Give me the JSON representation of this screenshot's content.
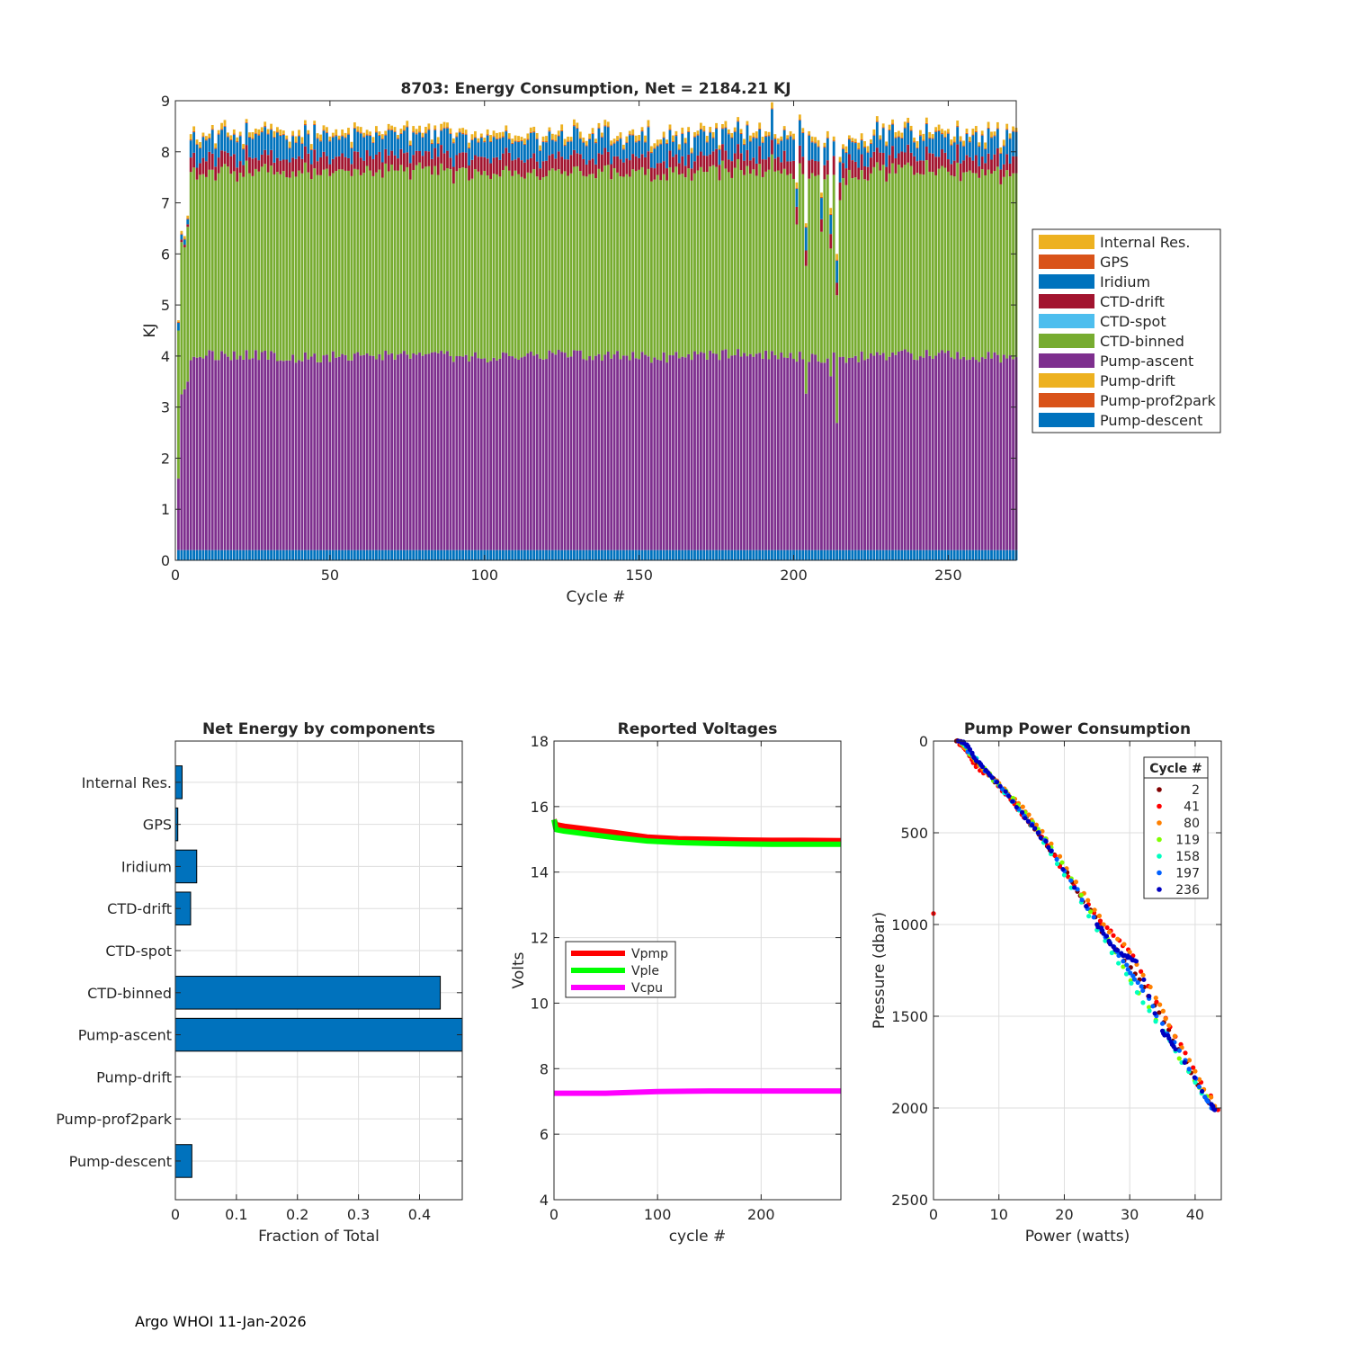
{
  "footer": "Argo WHOI 11-Jan-2026",
  "colors": {
    "Internal Res.": "#EDB120",
    "GPS": "#D95319",
    "Iridium": "#0072BD",
    "CTD-drift": "#A2142F",
    "CTD-spot": "#4DBEEE",
    "CTD-binned": "#77AC30",
    "Pump-ascent": "#7E2F8E",
    "Pump-drift": "#EDB120",
    "Pump-prof2park": "#D95319",
    "Pump-descent": "#0072BD"
  },
  "chart_data": [
    {
      "id": "energy",
      "type": "bar",
      "stacked": true,
      "title": "8703: Energy Consumption,  Net = 2184.21 KJ",
      "xlabel": "Cycle #",
      "ylabel": "KJ",
      "xlim": [
        0,
        272
      ],
      "ylim": [
        0,
        9
      ],
      "xticks": [
        0,
        50,
        100,
        150,
        200,
        250
      ],
      "yticks": [
        0,
        1,
        2,
        3,
        4,
        5,
        6,
        7,
        8,
        9
      ],
      "grid": false,
      "legend_position": "right",
      "legend": [
        "Internal Res.",
        "GPS",
        "Iridium",
        "CTD-drift",
        "CTD-spot",
        "CTD-binned",
        "Pump-ascent",
        "Pump-drift",
        "Pump-prof2park",
        "Pump-descent"
      ],
      "n_cycles": 272,
      "typical_stack": {
        "Pump-descent": 0.2,
        "Pump-prof2park": 0.0,
        "Pump-drift": 0.0,
        "Pump-ascent": 3.85,
        "CTD-binned": 3.6,
        "CTD-spot": 0.0,
        "CTD-drift": 0.3,
        "Iridium": 0.35,
        "GPS": 0.02,
        "Internal Res.": 0.1
      },
      "approx_totals": {
        "cycle_1": 4.7,
        "cycle_2": 6.45,
        "cycle_3": 6.35,
        "cycle_4": 6.75,
        "typical_range": [
          8.1,
          8.6
        ],
        "cycle_193": 8.9,
        "dips": {
          "201": 7.4,
          "204": 6.6,
          "209": 7.2,
          "212": 6.9,
          "214": 6.0,
          "215": 7.9
        }
      }
    },
    {
      "id": "components",
      "type": "bar",
      "orientation": "horizontal",
      "title": "Net Energy by components",
      "xlabel": "Fraction of Total",
      "ylabel": "",
      "xlim": [
        0,
        0.47
      ],
      "xticks": [
        0,
        0.1,
        0.2,
        0.3,
        0.4
      ],
      "xtick_labels": [
        "0",
        "0.1",
        "0.2",
        "0.3",
        "0.4"
      ],
      "grid": true,
      "categories": [
        "Internal Res.",
        "GPS",
        "Iridium",
        "CTD-drift",
        "CTD-spot",
        "CTD-binned",
        "Pump-ascent",
        "Pump-drift",
        "Pump-prof2park",
        "Pump-descent"
      ],
      "values": [
        0.011,
        0.004,
        0.035,
        0.025,
        0.0,
        0.434,
        0.47,
        0.0,
        0.0,
        0.027
      ]
    },
    {
      "id": "voltages",
      "type": "line",
      "title": "Reported Voltages",
      "xlabel": "cycle #",
      "ylabel": "Volts",
      "xlim": [
        0,
        277
      ],
      "ylim": [
        4,
        18
      ],
      "xticks": [
        0,
        100,
        200
      ],
      "yticks": [
        4,
        6,
        8,
        10,
        12,
        14,
        16,
        18
      ],
      "grid": true,
      "legend_position": "center-left",
      "series": [
        {
          "name": "Vpmp",
          "color": "#FF0000",
          "x": [
            0,
            2,
            10,
            30,
            60,
            90,
            120,
            150,
            180,
            210,
            240,
            277
          ],
          "y": [
            15.6,
            15.45,
            15.4,
            15.32,
            15.2,
            15.07,
            15.02,
            15.0,
            14.98,
            14.97,
            14.97,
            14.96
          ]
        },
        {
          "name": "Vple",
          "color": "#00FF00",
          "x": [
            0,
            2,
            10,
            30,
            60,
            90,
            120,
            150,
            180,
            210,
            240,
            277
          ],
          "y": [
            15.6,
            15.3,
            15.25,
            15.17,
            15.05,
            14.95,
            14.9,
            14.88,
            14.86,
            14.85,
            14.85,
            14.85
          ]
        },
        {
          "name": "Vcpu",
          "color": "#FF00FF",
          "x": [
            0,
            50,
            100,
            150,
            200,
            277
          ],
          "y": [
            7.25,
            7.25,
            7.3,
            7.32,
            7.32,
            7.32
          ]
        }
      ]
    },
    {
      "id": "pump",
      "type": "scatter",
      "title": "Pump Power Consumption",
      "xlabel": "Power (watts)",
      "ylabel": "Pressure (dbar)",
      "xlim": [
        0,
        44
      ],
      "ylim": [
        0,
        2500
      ],
      "y_reversed": true,
      "xticks": [
        0,
        10,
        20,
        30,
        40
      ],
      "yticks": [
        0,
        500,
        1000,
        1500,
        2000,
        2500
      ],
      "grid": true,
      "legend_title": "Cycle #",
      "legend_position": "top-right",
      "series": [
        {
          "name": "2",
          "color": "#800000",
          "x": [
            3.5,
            4.5,
            5.5,
            7,
            8.5,
            10.5,
            12.5,
            14.5,
            16.5,
            18.5,
            22,
            24,
            26.5,
            28.5,
            31.5,
            34.5,
            37.5,
            41.5,
            43
          ],
          "y": [
            0,
            10,
            80,
            130,
            180,
            260,
            340,
            440,
            530,
            620,
            820,
            920,
            1080,
            1160,
            1300,
            1480,
            1680,
            1940,
            2010
          ]
        },
        {
          "name": "41",
          "color": "#FF0000",
          "x": [
            0,
            4,
            5.2,
            6.5,
            9,
            11,
            13.5,
            15.5,
            17.5,
            21.5,
            25.5,
            27.5,
            30.5,
            35.5,
            38.5,
            43.5
          ],
          "y": [
            940,
            20,
            60,
            140,
            200,
            290,
            400,
            470,
            570,
            790,
            980,
            1060,
            1170,
            1510,
            1700,
            2010
          ]
        },
        {
          "name": "80",
          "color": "#FF8000",
          "x": [
            4.2,
            6,
            8,
            10,
            13,
            15,
            18,
            23,
            26,
            30,
            34,
            36,
            40,
            43
          ],
          "y": [
            15,
            90,
            170,
            230,
            340,
            430,
            560,
            830,
            1000,
            1150,
            1400,
            1550,
            1800,
            1990
          ]
        },
        {
          "name": "119",
          "color": "#80FF00",
          "x": [
            4.5,
            7,
            10,
            14,
            18,
            24,
            29,
            34,
            39,
            42.5
          ],
          "y": [
            20,
            120,
            240,
            390,
            580,
            930,
            1230,
            1520,
            1800,
            1980
          ]
        },
        {
          "name": "158",
          "color": "#00FFC0",
          "x": [
            4.8,
            8,
            12,
            16,
            20,
            25,
            29.5,
            33,
            37,
            41
          ],
          "y": [
            25,
            160,
            330,
            500,
            730,
            1030,
            1270,
            1470,
            1690,
            1920
          ]
        },
        {
          "name": "197",
          "color": "#0060FF",
          "x": [
            4.3,
            6.5,
            9.5,
            13,
            17,
            21,
            24.5,
            27,
            29,
            30.5,
            32,
            35,
            38.5,
            41.5,
            42.5
          ],
          "y": [
            10,
            100,
            220,
            370,
            540,
            760,
            960,
            1100,
            1200,
            1280,
            1360,
            1540,
            1740,
            1940,
            2000
          ]
        },
        {
          "name": "236",
          "color": "#0000C0",
          "x": [
            3.8,
            4.6,
            5.3,
            6.2,
            7.5,
            9,
            11.5,
            14,
            16,
            18,
            25,
            26,
            27.5,
            29,
            30,
            31,
            35,
            36,
            37,
            42.5,
            43
          ],
          "y": [
            0,
            5,
            30,
            90,
            140,
            200,
            300,
            420,
            500,
            600,
            1000,
            1050,
            1120,
            1170,
            1180,
            1200,
            1580,
            1620,
            1680,
            1980,
            2010
          ]
        }
      ]
    }
  ]
}
